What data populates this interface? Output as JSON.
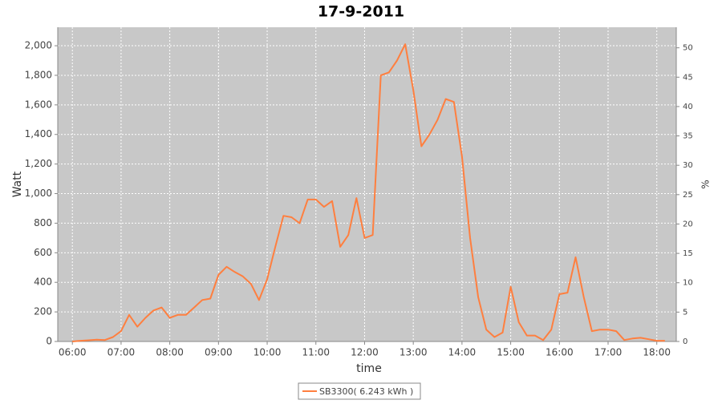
{
  "chart_data": {
    "type": "line",
    "title": "17-9-2011",
    "x_label": "time",
    "y_label": "Watt",
    "y2_label": "%",
    "x": [
      "06:00",
      "06:10",
      "06:20",
      "06:30",
      "06:40",
      "06:50",
      "07:00",
      "07:10",
      "07:20",
      "07:30",
      "07:40",
      "07:50",
      "08:00",
      "08:10",
      "08:20",
      "08:30",
      "08:40",
      "08:50",
      "09:00",
      "09:10",
      "09:20",
      "09:30",
      "09:40",
      "09:50",
      "10:00",
      "10:10",
      "10:20",
      "10:30",
      "10:40",
      "10:50",
      "11:00",
      "11:10",
      "11:20",
      "11:30",
      "11:40",
      "11:50",
      "12:00",
      "12:10",
      "12:20",
      "12:30",
      "12:40",
      "12:50",
      "13:00",
      "13:10",
      "13:20",
      "13:30",
      "13:40",
      "13:50",
      "14:00",
      "14:10",
      "14:20",
      "14:30",
      "14:40",
      "14:50",
      "15:00",
      "15:10",
      "15:20",
      "15:30",
      "15:40",
      "15:50",
      "16:00",
      "16:10",
      "16:20",
      "16:30",
      "16:40",
      "16:50",
      "17:00",
      "17:10",
      "17:20",
      "17:30",
      "17:40",
      "17:50",
      "18:00",
      "18:10"
    ],
    "series": [
      {
        "name": "SB3300( 6.243 kWh )",
        "color": "#ff7f3f",
        "values": [
          0,
          5,
          8,
          12,
          10,
          30,
          70,
          180,
          100,
          160,
          210,
          230,
          160,
          180,
          180,
          230,
          280,
          290,
          450,
          505,
          470,
          440,
          390,
          280,
          420,
          640,
          850,
          840,
          800,
          960,
          960,
          910,
          950,
          640,
          720,
          970,
          700,
          720,
          1800,
          1820,
          1900,
          2010,
          1700,
          1320,
          1400,
          1500,
          1640,
          1620,
          1250,
          700,
          300,
          80,
          30,
          60,
          370,
          130,
          40,
          40,
          10,
          80,
          320,
          330,
          570,
          300,
          70,
          80,
          80,
          70,
          10,
          20,
          25,
          15,
          5,
          5
        ]
      }
    ],
    "xlim": [
      "05:42",
      "18:24"
    ],
    "xticks": [
      "06:00",
      "07:00",
      "08:00",
      "09:00",
      "10:00",
      "11:00",
      "12:00",
      "13:00",
      "14:00",
      "15:00",
      "16:00",
      "17:00",
      "18:00"
    ],
    "ylim": [
      0,
      2125
    ],
    "yticks": [
      0,
      200,
      400,
      600,
      800,
      {
        "value": 1000,
        "label": "1,000"
      },
      {
        "value": 1200,
        "label": "1,200"
      },
      {
        "value": 1400,
        "label": "1,400"
      },
      {
        "value": 1600,
        "label": "1,600"
      },
      {
        "value": 1800,
        "label": "1,800"
      },
      {
        "value": 2000,
        "label": "2,000"
      }
    ],
    "y2lim": [
      0,
      53.5
    ],
    "y2ticks": [
      0,
      5,
      10,
      15,
      20,
      25,
      30,
      35,
      40,
      45,
      50
    ],
    "grid": true
  }
}
